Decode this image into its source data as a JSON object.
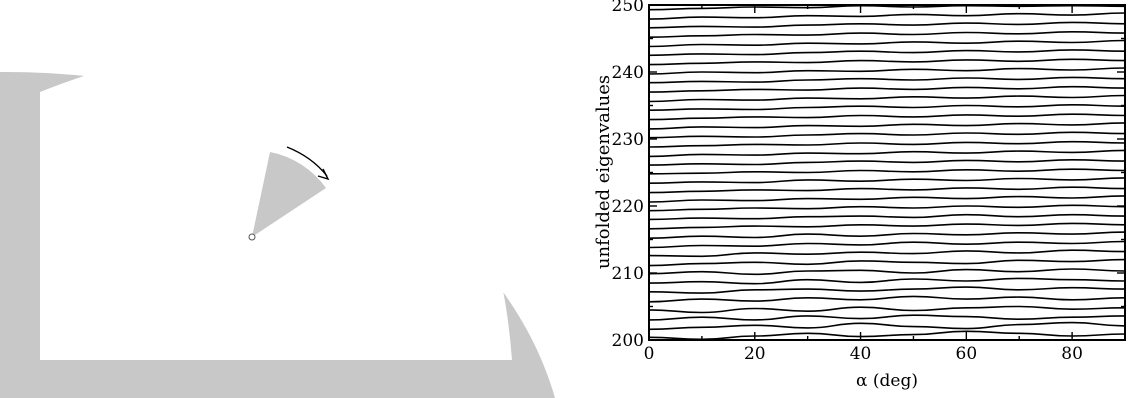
{
  "colors": {
    "fill": "#c8c8c8",
    "ink": "#000000",
    "background": "#ffffff"
  },
  "left_panel": {
    "shapes": [
      "quarter-disc-billiard-wall",
      "rotating-sector",
      "rotation-arrow",
      "pivot-point"
    ]
  },
  "chart_data": {
    "type": "line",
    "title": "",
    "xlabel": "α (deg)",
    "ylabel": "unfolded eigenvalues",
    "xlim": [
      0,
      90
    ],
    "ylim": [
      200,
      250
    ],
    "xticks": [
      0,
      20,
      40,
      60,
      80
    ],
    "yticks": [
      200,
      210,
      220,
      230,
      240,
      250
    ],
    "grid": false,
    "legend": "none",
    "series_x": [
      0,
      10,
      20,
      30,
      40,
      50,
      60,
      70,
      80,
      90
    ],
    "series": [
      {
        "values": [
          200.4,
          200.1,
          200.6,
          201.0,
          200.5,
          200.8,
          201.3,
          201.0,
          200.6,
          200.9
        ]
      },
      {
        "values": [
          201.6,
          201.9,
          202.2,
          201.8,
          202.5,
          202.0,
          201.7,
          202.3,
          202.6,
          202.1
        ]
      },
      {
        "values": [
          203.0,
          203.4,
          203.0,
          203.6,
          203.2,
          203.7,
          203.5,
          203.1,
          203.4,
          203.6
        ]
      },
      {
        "values": [
          204.5,
          204.1,
          204.7,
          204.3,
          204.9,
          204.4,
          204.8,
          205.0,
          204.6,
          204.8
        ]
      },
      {
        "values": [
          205.7,
          206.1,
          205.8,
          206.3,
          206.0,
          206.5,
          206.1,
          206.4,
          206.0,
          206.3
        ]
      },
      {
        "values": [
          207.2,
          207.0,
          207.5,
          207.6,
          207.3,
          207.6,
          207.9,
          207.5,
          207.8,
          207.6
        ]
      },
      {
        "values": [
          208.5,
          208.7,
          208.4,
          209.0,
          208.6,
          209.1,
          208.8,
          209.2,
          209.0,
          208.8
        ]
      },
      {
        "values": [
          209.9,
          210.2,
          209.8,
          210.3,
          210.4,
          210.0,
          210.5,
          210.2,
          210.6,
          210.3
        ]
      },
      {
        "values": [
          211.1,
          211.4,
          211.6,
          211.3,
          211.8,
          211.6,
          211.4,
          211.9,
          211.7,
          212.0
        ]
      },
      {
        "values": [
          212.6,
          212.5,
          213.0,
          212.8,
          213.1,
          212.9,
          213.3,
          213.0,
          213.4,
          213.2
        ]
      },
      {
        "values": [
          213.8,
          214.1,
          214.0,
          214.4,
          214.2,
          214.6,
          214.3,
          214.6,
          214.4,
          214.7
        ]
      },
      {
        "values": [
          215.2,
          215.5,
          215.3,
          215.8,
          215.5,
          215.9,
          215.7,
          216.0,
          215.8,
          216.1
        ]
      },
      {
        "values": [
          216.6,
          216.8,
          217.0,
          216.9,
          217.2,
          217.0,
          217.3,
          217.1,
          217.4,
          217.2
        ]
      },
      {
        "values": [
          218.0,
          218.2,
          218.1,
          218.4,
          218.5,
          218.3,
          218.7,
          218.4,
          218.7,
          218.5
        ]
      },
      {
        "values": [
          219.3,
          219.5,
          219.7,
          219.6,
          219.9,
          219.7,
          220.0,
          219.8,
          220.1,
          219.9
        ]
      },
      {
        "values": [
          220.6,
          220.9,
          220.8,
          221.1,
          221.0,
          221.3,
          221.1,
          221.4,
          221.2,
          221.5
        ]
      },
      {
        "values": [
          222.0,
          222.2,
          222.4,
          222.3,
          222.6,
          222.4,
          222.7,
          222.5,
          222.8,
          222.6
        ]
      },
      {
        "values": [
          223.4,
          223.6,
          223.5,
          223.9,
          223.7,
          224.0,
          223.8,
          224.1,
          223.9,
          224.2
        ]
      },
      {
        "values": [
          224.8,
          224.9,
          225.1,
          225.0,
          225.3,
          225.1,
          225.4,
          225.2,
          225.5,
          225.3
        ]
      },
      {
        "values": [
          226.1,
          226.3,
          226.2,
          226.5,
          226.7,
          226.5,
          226.8,
          226.6,
          226.9,
          226.7
        ]
      },
      {
        "values": [
          227.4,
          227.7,
          227.6,
          227.9,
          227.8,
          228.1,
          227.9,
          228.2,
          228.0,
          228.3
        ]
      },
      {
        "values": [
          228.8,
          229.0,
          229.2,
          229.1,
          229.4,
          229.2,
          229.5,
          229.3,
          229.6,
          229.4
        ]
      },
      {
        "values": [
          230.2,
          230.4,
          230.3,
          230.6,
          230.8,
          230.6,
          230.9,
          230.7,
          231.0,
          230.8
        ]
      },
      {
        "values": [
          231.5,
          231.8,
          231.7,
          232.0,
          231.9,
          232.2,
          232.0,
          232.3,
          232.1,
          232.4
        ]
      },
      {
        "values": [
          232.9,
          233.1,
          233.3,
          233.2,
          233.5,
          233.3,
          233.6,
          233.4,
          233.7,
          233.5
        ]
      },
      {
        "values": [
          234.3,
          234.5,
          234.4,
          234.7,
          234.9,
          234.7,
          235.0,
          234.8,
          235.1,
          234.9
        ]
      },
      {
        "values": [
          235.6,
          235.9,
          235.8,
          236.1,
          236.0,
          236.3,
          236.1,
          236.4,
          236.2,
          236.5
        ]
      },
      {
        "values": [
          237.0,
          237.2,
          237.4,
          237.3,
          237.6,
          237.4,
          237.7,
          237.5,
          237.8,
          237.6
        ]
      },
      {
        "values": [
          238.4,
          238.6,
          238.5,
          238.8,
          239.0,
          238.8,
          239.1,
          238.9,
          239.2,
          239.0
        ]
      },
      {
        "values": [
          239.7,
          240.0,
          239.9,
          240.2,
          240.1,
          240.4,
          240.2,
          240.5,
          240.3,
          240.6
        ]
      },
      {
        "values": [
          241.1,
          241.3,
          241.5,
          241.4,
          241.7,
          241.5,
          241.8,
          241.6,
          241.9,
          241.7
        ]
      },
      {
        "values": [
          242.5,
          242.7,
          242.6,
          242.9,
          243.1,
          242.9,
          243.2,
          243.0,
          243.3,
          243.1
        ]
      },
      {
        "values": [
          243.8,
          244.1,
          244.0,
          244.3,
          244.2,
          244.5,
          244.3,
          244.6,
          244.4,
          244.7
        ]
      },
      {
        "values": [
          245.2,
          245.4,
          245.6,
          245.5,
          245.8,
          245.6,
          245.9,
          245.7,
          246.0,
          245.8
        ]
      },
      {
        "values": [
          246.6,
          246.8,
          246.7,
          247.0,
          247.2,
          247.0,
          247.3,
          247.1,
          247.4,
          247.2
        ]
      },
      {
        "values": [
          247.9,
          248.2,
          248.1,
          248.4,
          248.3,
          248.6,
          248.4,
          248.7,
          248.5,
          248.8
        ]
      },
      {
        "values": [
          249.3,
          249.5,
          249.7,
          249.6,
          249.9,
          249.7,
          249.9,
          249.8,
          249.9,
          249.8
        ]
      }
    ]
  }
}
